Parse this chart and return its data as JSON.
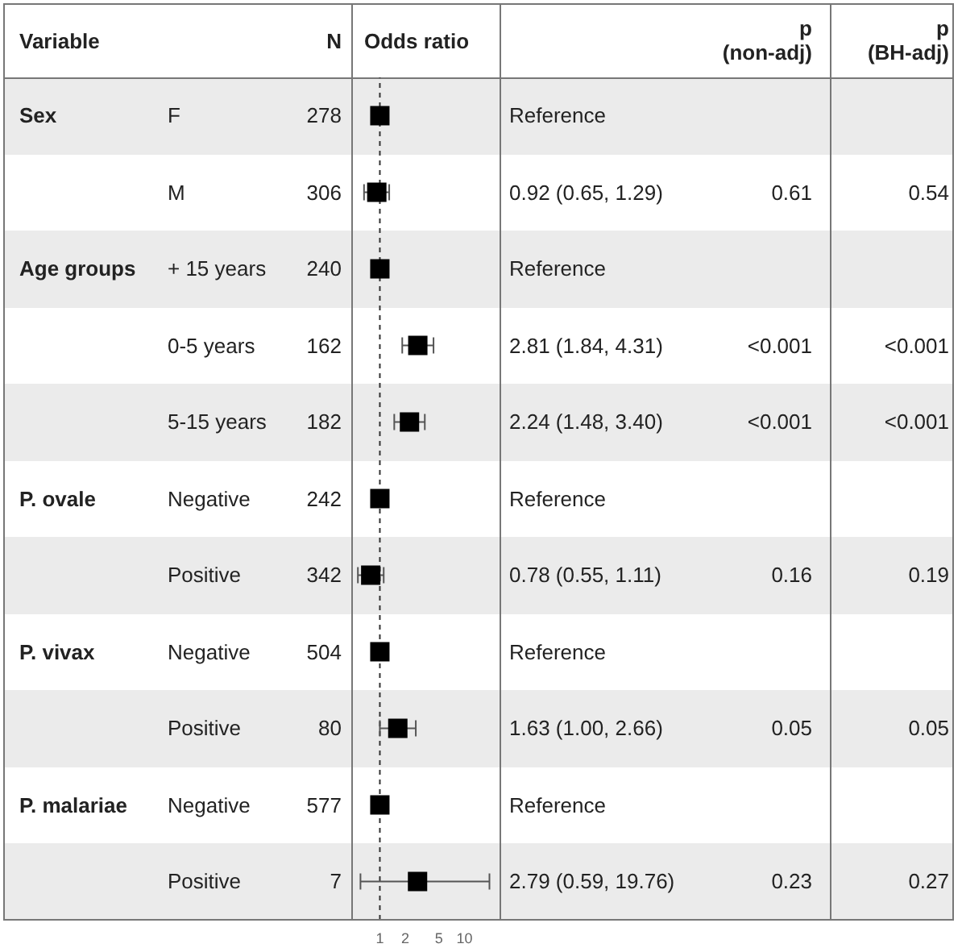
{
  "chart_data": {
    "type": "scatter",
    "orientation": "horizontal",
    "xlabel": "Odds ratio",
    "categories": [
      "F",
      "M",
      "+ 15 years",
      "0-5 years",
      "5-15 years",
      "Negative",
      "Positive",
      "Negative",
      "Positive",
      "Negative",
      "Positive"
    ],
    "values": [
      1,
      0.92,
      1,
      2.81,
      2.24,
      1,
      0.78,
      1,
      1.63,
      1,
      2.79
    ],
    "errors": [
      null,
      [
        0.65,
        1.29
      ],
      null,
      [
        1.84,
        4.31
      ],
      [
        1.48,
        3.4
      ],
      null,
      [
        0.55,
        1.11
      ],
      null,
      [
        1.0,
        2.66
      ],
      null,
      [
        0.59,
        19.76
      ]
    ],
    "color": "#000000",
    "marker": "square",
    "log": "x",
    "xlim": [
      0.48,
      26
    ],
    "xticks": [
      1,
      2,
      5,
      10
    ],
    "grid": false,
    "ref_lines": [
      {
        "axis": "x",
        "value": 1,
        "line_style": "dashed",
        "color": "#333333"
      }
    ],
    "annotations": [
      "Variable",
      "N",
      "p (non-adj)",
      "p (BH-adj)",
      "Sex",
      "Age groups",
      "P. ovale",
      "P. vivax",
      "P. malariae",
      "278",
      "306",
      "240",
      "162",
      "182",
      "242",
      "342",
      "504",
      "80",
      "577",
      "7",
      "Reference",
      "0.92 (0.65, 1.29)",
      "Reference",
      "2.81 (1.84, 4.31)",
      "2.24 (1.48, 3.40)",
      "Reference",
      "0.78 (0.55, 1.11)",
      "Reference",
      "1.63 (1.00, 2.66)",
      "Reference",
      "2.79 (0.59, 19.76)",
      "0.61",
      "<0.001",
      "<0.001",
      "0.16",
      "0.05",
      "0.23",
      "0.54",
      "<0.001",
      "<0.001",
      "0.19",
      "0.05",
      "0.27"
    ]
  }
}
